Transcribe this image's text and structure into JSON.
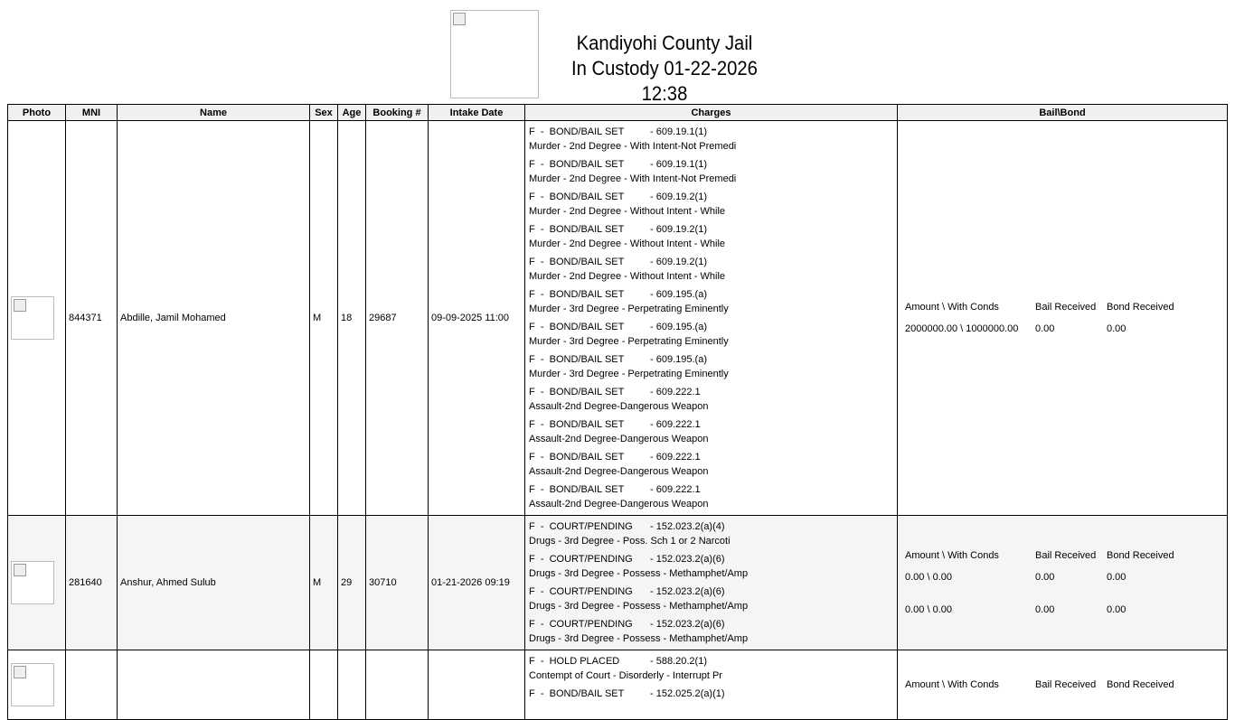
{
  "header": {
    "agency": "Kandiyohi County Jail",
    "subtitle": "In Custody 01-22-2026 12:38"
  },
  "columns": [
    "Photo",
    "MNI",
    "Name",
    "Sex",
    "Age",
    "Booking #",
    "Intake Date",
    "Charges",
    "Bail\\Bond"
  ],
  "bail_headers": [
    "Amount \\ With Conds",
    "Bail Received",
    "Bond Received"
  ],
  "rows": [
    {
      "mni": "844371",
      "name": "Abdille, Jamil Mohamed",
      "sex": "M",
      "age": "18",
      "booking": "29687",
      "intake": "09-09-2025 11:00",
      "charges": [
        {
          "status": "F  -  BOND/BAIL SET",
          "statute": "-  609.19.1(1)",
          "desc": "Murder - 2nd Degree - With Intent-Not Premedi"
        },
        {
          "status": "F  -  BOND/BAIL SET",
          "statute": "-  609.19.1(1)",
          "desc": "Murder - 2nd Degree - With Intent-Not Premedi"
        },
        {
          "status": "F  -  BOND/BAIL SET",
          "statute": "-  609.19.2(1)",
          "desc": "Murder - 2nd Degree - Without Intent - While"
        },
        {
          "status": "F  -  BOND/BAIL SET",
          "statute": "-  609.19.2(1)",
          "desc": "Murder - 2nd Degree - Without Intent - While"
        },
        {
          "status": "F  -  BOND/BAIL SET",
          "statute": "-  609.19.2(1)",
          "desc": "Murder - 2nd Degree - Without Intent - While"
        },
        {
          "status": "F  -  BOND/BAIL SET",
          "statute": "-  609.195.(a)",
          "desc": "Murder - 3rd Degree - Perpetrating Eminently"
        },
        {
          "status": "F  -  BOND/BAIL SET",
          "statute": "-  609.195.(a)",
          "desc": "Murder - 3rd Degree - Perpetrating Eminently"
        },
        {
          "status": "F  -  BOND/BAIL SET",
          "statute": "-  609.195.(a)",
          "desc": "Murder - 3rd Degree - Perpetrating Eminently"
        },
        {
          "status": "F  -  BOND/BAIL SET",
          "statute": "-  609.222.1",
          "desc": "Assault-2nd Degree-Dangerous Weapon"
        },
        {
          "status": "F  -  BOND/BAIL SET",
          "statute": "-  609.222.1",
          "desc": "Assault-2nd Degree-Dangerous Weapon"
        },
        {
          "status": "F  -  BOND/BAIL SET",
          "statute": "-  609.222.1",
          "desc": "Assault-2nd Degree-Dangerous Weapon"
        },
        {
          "status": "F  -  BOND/BAIL SET",
          "statute": "-  609.222.1",
          "desc": "Assault-2nd Degree-Dangerous Weapon"
        }
      ],
      "bail": [
        {
          "amount": "2000000.00  \\  1000000.00",
          "bail": "0.00",
          "bond": "0.00"
        }
      ]
    },
    {
      "mni": "281640",
      "name": "Anshur, Ahmed Sulub",
      "sex": "M",
      "age": "29",
      "booking": "30710",
      "intake": "01-21-2026 09:19",
      "charges": [
        {
          "status": "F  -  COURT/PENDING",
          "statute": "-  152.023.2(a)(4)",
          "desc": "Drugs - 3rd Degree - Poss. Sch 1 or 2 Narcoti"
        },
        {
          "status": "F  -  COURT/PENDING",
          "statute": "-  152.023.2(a)(6)",
          "desc": "Drugs - 3rd Degree - Possess - Methamphet/Amp"
        },
        {
          "status": "F  -  COURT/PENDING",
          "statute": "-  152.023.2(a)(6)",
          "desc": "Drugs - 3rd Degree - Possess - Methamphet/Amp"
        },
        {
          "status": "F  -  COURT/PENDING",
          "statute": "-  152.023.2(a)(6)",
          "desc": "Drugs - 3rd Degree - Possess - Methamphet/Amp"
        }
      ],
      "bail": [
        {
          "amount": "0.00  \\  0.00",
          "bail": "0.00",
          "bond": "0.00"
        },
        {
          "amount": "0.00  \\  0.00",
          "bail": "0.00",
          "bond": "0.00"
        }
      ]
    },
    {
      "mni": "",
      "name": "",
      "sex": "",
      "age": "",
      "booking": "",
      "intake": "",
      "charges": [
        {
          "status": "F  -  HOLD PLACED",
          "statute": "-  588.20.2(1)",
          "desc": "Contempt of Court - Disorderly - Interrupt Pr"
        },
        {
          "status": "F  -  BOND/BAIL SET",
          "statute": "-  152.025.2(a)(1)",
          "desc": ""
        }
      ],
      "bail": []
    }
  ]
}
